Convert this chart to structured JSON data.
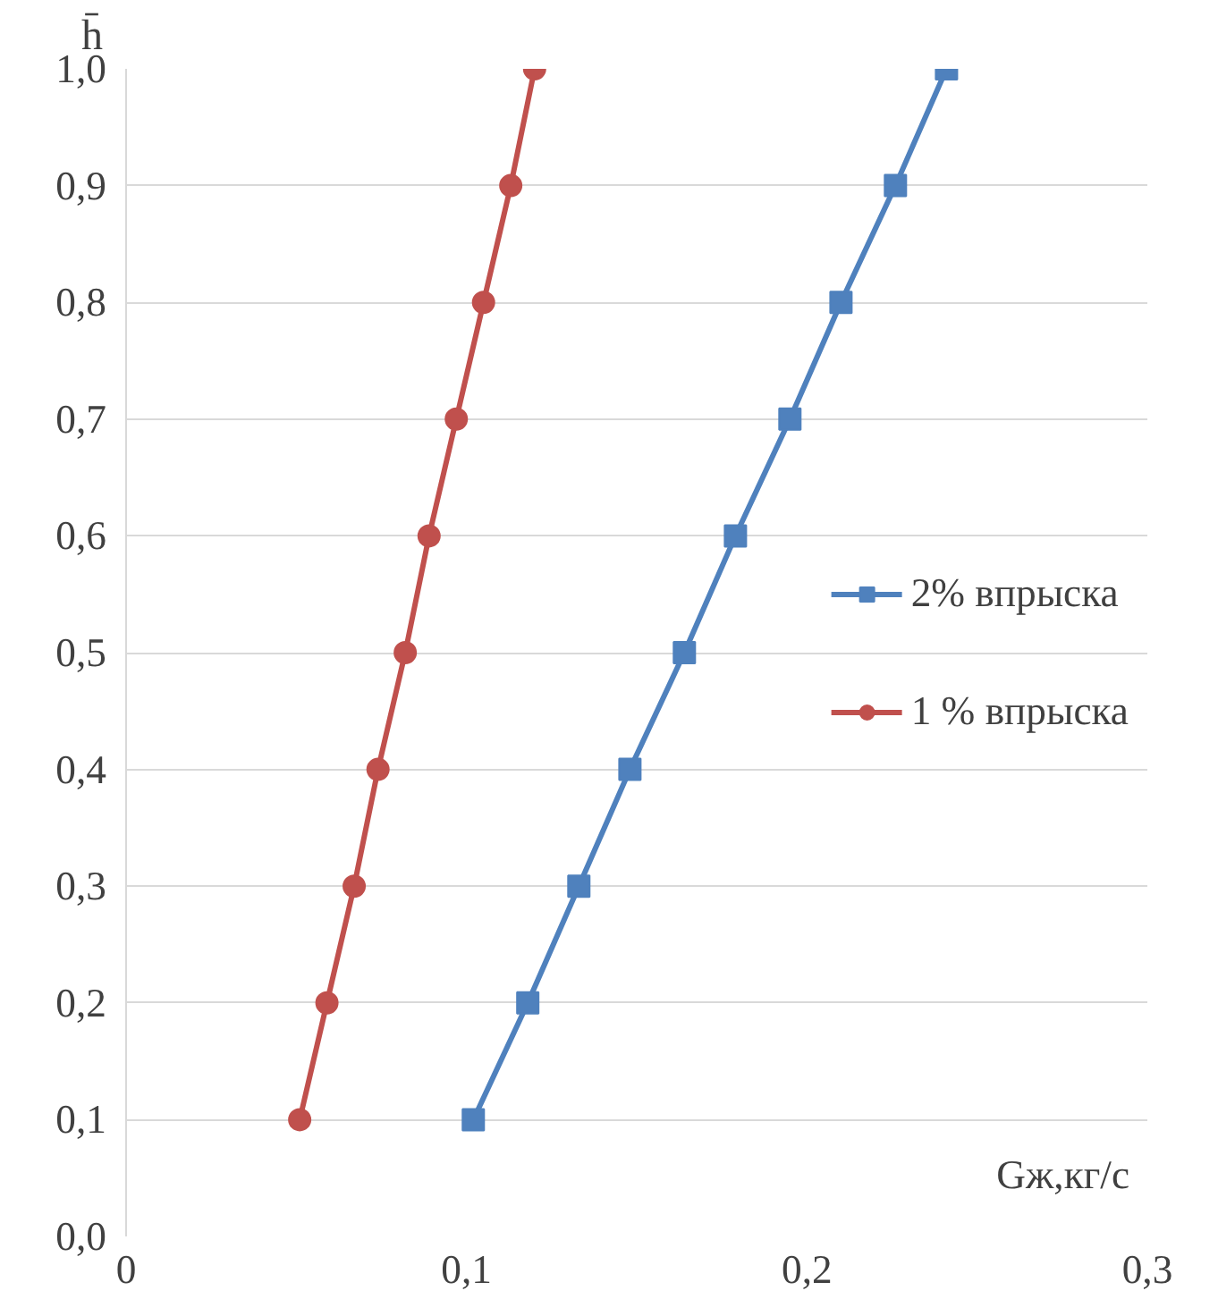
{
  "chart_data": {
    "type": "line",
    "xlabel": "Gж,кг/с",
    "ylabel": "h̄",
    "xlim": [
      0,
      0.3
    ],
    "xticks": [
      0,
      {
        "value": 0.1,
        "label": "0,1"
      },
      {
        "value": 0.2,
        "label": "0,2"
      },
      {
        "value": 0.3,
        "label": "0,3"
      }
    ],
    "ylim": [
      0,
      1.0
    ],
    "yticks": [
      {
        "value": 0,
        "label": "0,0"
      },
      {
        "value": 0.1,
        "label": "0,1"
      },
      {
        "value": 0.2,
        "label": "0,2"
      },
      {
        "value": 0.3,
        "label": "0,3"
      },
      {
        "value": 0.4,
        "label": "0,4"
      },
      {
        "value": 0.5,
        "label": "0,5"
      },
      {
        "value": 0.6,
        "label": "0,6"
      },
      {
        "value": 0.7,
        "label": "0,7"
      },
      {
        "value": 0.8,
        "label": "0,8"
      },
      {
        "value": 0.9,
        "label": "0,9"
      },
      {
        "value": 1.0,
        "label": "1,0"
      }
    ],
    "grid": "y",
    "legend": "right",
    "line_style": "solid",
    "series": [
      {
        "name": "2% впрыска",
        "color": "#4f81bd",
        "marker": "square",
        "x": [
          0.102,
          0.118,
          0.133,
          0.148,
          0.164,
          0.179,
          0.195,
          0.21,
          0.226,
          0.241
        ],
        "values": [
          0.1,
          0.2,
          0.3,
          0.4,
          0.5,
          0.6,
          0.7,
          0.8,
          0.9,
          1.0
        ]
      },
      {
        "name": "1 % впрыска",
        "color": "#c0504d",
        "marker": "circle",
        "x": [
          0.051,
          0.059,
          0.067,
          0.074,
          0.082,
          0.089,
          0.097,
          0.105,
          0.113,
          0.12
        ],
        "values": [
          0.1,
          0.2,
          0.3,
          0.4,
          0.5,
          0.6,
          0.7,
          0.8,
          0.9,
          1.0
        ]
      }
    ]
  }
}
